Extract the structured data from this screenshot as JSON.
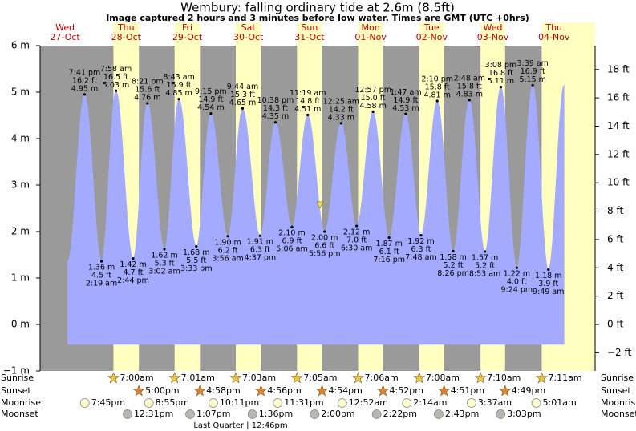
{
  "chart_data": {
    "type": "tide",
    "title": "Wembury: falling  ordinary tide at 2.6m (8.5ft)",
    "subtitle": "Image captured 2 hours and 3 minutes before low water. Times are GMT (UTC +0hrs)",
    "ylim": [
      -1,
      6
    ],
    "yticks": [
      {
        "value": -1,
        "label": "−1 m"
      },
      {
        "value": 0,
        "label": "0 m"
      },
      {
        "value": 1,
        "label": "1 m"
      },
      {
        "value": 2,
        "label": "2 m"
      },
      {
        "value": 3,
        "label": "3 m"
      },
      {
        "value": 4,
        "label": "4 m"
      },
      {
        "value": 5,
        "label": "5 m"
      },
      {
        "value": 6,
        "label": "6 m"
      }
    ],
    "y2lim": [
      -3.281,
      19.685
    ],
    "y2ticks": [
      {
        "value": -2,
        "label": "−2 ft"
      },
      {
        "value": 0,
        "label": "0 ft"
      },
      {
        "value": 2,
        "label": "2 ft"
      },
      {
        "value": 4,
        "label": "4 ft"
      },
      {
        "value": 6,
        "label": "6 ft"
      },
      {
        "value": 8,
        "label": "8 ft"
      },
      {
        "value": 10,
        "label": "10 ft"
      },
      {
        "value": 12,
        "label": "12 ft"
      },
      {
        "value": 14,
        "label": "14 ft"
      },
      {
        "value": 16,
        "label": "16 ft"
      },
      {
        "value": 18,
        "label": "18 ft"
      }
    ],
    "row_labels": {
      "sunrise": "Sunrise",
      "sunset": "Sunset",
      "moonrise": "Moonrise",
      "moonset": "Moonset"
    },
    "moon_phase": "Last Quarter | 12:46pm",
    "days": [
      {
        "weekday": "Wed",
        "date": "27-Oct",
        "moonrise": "7:45pm",
        "tides": [
          {
            "time": "7:41 pm",
            "height_m": 4.95,
            "label_m": "4.95 m",
            "label_ft": "16.2 ft"
          }
        ]
      },
      {
        "weekday": "Thu",
        "date": "28-Oct",
        "sunrise": "7:00am",
        "sunset": "5:00pm",
        "moonrise": "8:55pm",
        "moonset": "12:31pm",
        "tides": [
          {
            "time": "2:19 am",
            "height_m": 1.36,
            "label_m": "1.36 m",
            "label_ft": "4.5 ft"
          },
          {
            "time": "7:58 am",
            "height_m": 5.03,
            "label_m": "5.03 m",
            "label_ft": "16.5 ft"
          },
          {
            "time": "2:44 pm",
            "height_m": 1.42,
            "label_m": "1.42 m",
            "label_ft": "4.7 ft"
          },
          {
            "time": "8:21 pm",
            "height_m": 4.76,
            "label_m": "4.76 m",
            "label_ft": "15.6 ft"
          }
        ]
      },
      {
        "weekday": "Fri",
        "date": "29-Oct",
        "sunrise": "7:01am",
        "sunset": "4:58pm",
        "moonrise": "10:11pm",
        "moonset": "1:07pm",
        "tides": [
          {
            "time": "3:02 am",
            "height_m": 1.62,
            "label_m": "1.62 m",
            "label_ft": "5.3 ft"
          },
          {
            "time": "8:43 am",
            "height_m": 4.85,
            "label_m": "4.85 m",
            "label_ft": "15.9 ft"
          },
          {
            "time": "3:33 pm",
            "height_m": 1.68,
            "label_m": "1.68 m",
            "label_ft": "5.5 ft"
          },
          {
            "time": "9:15 pm",
            "height_m": 4.54,
            "label_m": "4.54 m",
            "label_ft": "14.9 ft"
          }
        ]
      },
      {
        "weekday": "Sat",
        "date": "30-Oct",
        "sunrise": "7:03am",
        "sunset": "4:56pm",
        "moonrise": "11:31pm",
        "moonset": "1:36pm",
        "tides": [
          {
            "time": "3:56 am",
            "height_m": 1.9,
            "label_m": "1.90 m",
            "label_ft": "6.2 ft"
          },
          {
            "time": "9:44 am",
            "height_m": 4.65,
            "label_m": "4.65 m",
            "label_ft": "15.3 ft"
          },
          {
            "time": "4:37 pm",
            "height_m": 1.91,
            "label_m": "1.91 m",
            "label_ft": "6.3 ft"
          },
          {
            "time": "10:38 pm",
            "height_m": 4.35,
            "label_m": "4.35 m",
            "label_ft": "14.3 ft"
          }
        ]
      },
      {
        "weekday": "Sun",
        "date": "31-Oct",
        "sunrise": "7:05am",
        "sunset": "4:54pm",
        "moonset": "2:00pm",
        "tides": [
          {
            "time": "5:06 am",
            "height_m": 2.1,
            "label_m": "2.10 m",
            "label_ft": "6.9 ft"
          },
          {
            "time": "11:19 am",
            "height_m": 4.51,
            "label_m": "4.51 m",
            "label_ft": "14.8 ft"
          },
          {
            "time": "5:56 pm",
            "height_m": 2.0,
            "label_m": "2.00 m",
            "label_ft": "6.6 ft"
          }
        ]
      },
      {
        "weekday": "Mon",
        "date": "01-Nov",
        "sunrise": "7:06am",
        "sunset": "4:52pm",
        "moonrise": "12:52am",
        "moonset": "2:22pm",
        "tides": [
          {
            "time": "12:25 am",
            "height_m": 4.33,
            "label_m": "4.33 m",
            "label_ft": "14.2 ft"
          },
          {
            "time": "6:30 am",
            "height_m": 2.12,
            "label_m": "2.12 m",
            "label_ft": "7.0 ft"
          },
          {
            "time": "12:57 pm",
            "height_m": 4.58,
            "label_m": "4.58 m",
            "label_ft": "15.0 ft"
          },
          {
            "time": "7:16 pm",
            "height_m": 1.87,
            "label_m": "1.87 m",
            "label_ft": "6.1 ft"
          }
        ]
      },
      {
        "weekday": "Tue",
        "date": "02-Nov",
        "sunrise": "7:08am",
        "sunset": "4:51pm",
        "moonrise": "2:14am",
        "moonset": "2:43pm",
        "tides": [
          {
            "time": "1:47 am",
            "height_m": 4.53,
            "label_m": "4.53 m",
            "label_ft": "14.9 ft"
          },
          {
            "time": "7:48 am",
            "height_m": 1.92,
            "label_m": "1.92 m",
            "label_ft": "6.3 ft"
          },
          {
            "time": "2:10 pm",
            "height_m": 4.81,
            "label_m": "4.81 m",
            "label_ft": "15.8 ft"
          },
          {
            "time": "8:26 pm",
            "height_m": 1.58,
            "label_m": "1.58 m",
            "label_ft": "5.2 ft"
          }
        ]
      },
      {
        "weekday": "Wed",
        "date": "03-Nov",
        "sunrise": "7:10am",
        "sunset": "4:49pm",
        "moonrise": "3:37am",
        "moonset": "3:03pm",
        "tides": [
          {
            "time": "2:48 am",
            "height_m": 4.83,
            "label_m": "4.83 m",
            "label_ft": "15.8 ft"
          },
          {
            "time": "8:53 am",
            "height_m": 1.57,
            "label_m": "1.57 m",
            "label_ft": "5.2 ft"
          },
          {
            "time": "3:08 pm",
            "height_m": 5.11,
            "label_m": "5.11 m",
            "label_ft": "16.8 ft"
          },
          {
            "time": "9:24 pm",
            "height_m": 1.22,
            "label_m": "1.22 m",
            "label_ft": "4.0 ft"
          }
        ]
      },
      {
        "weekday": "Thu",
        "date": "04-Nov",
        "sunrise": "7:11am",
        "moonrise": "5:01am",
        "tides": [
          {
            "time": "3:39 am",
            "height_m": 5.15,
            "label_m": "5.15 m",
            "label_ft": "16.9 ft"
          },
          {
            "time": "9:49 am",
            "height_m": 1.18,
            "label_m": "1.18 m",
            "label_ft": "3.9 ft"
          }
        ]
      }
    ]
  }
}
